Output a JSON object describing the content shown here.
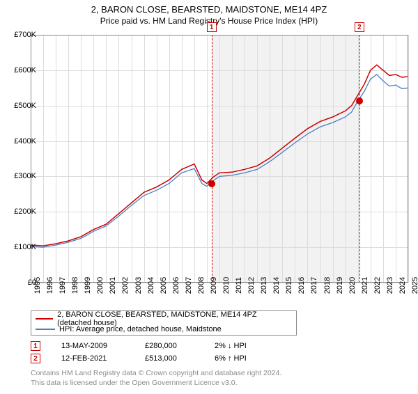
{
  "title": "2, BARON CLOSE, BEARSTED, MAIDSTONE, ME14 4PZ",
  "subtitle": "Price paid vs. HM Land Registry's House Price Index (HPI)",
  "chart": {
    "type": "line",
    "background_color": "#ffffff",
    "shaded_band_color": "#f2f2f2",
    "grid_color": "#dcdcdc",
    "axis_color": "#888888",
    "xlim_years": [
      1995,
      2025
    ],
    "ylim": [
      0,
      700000
    ],
    "ytick_step": 100000,
    "ytick_labels": [
      "£0",
      "£100K",
      "£200K",
      "£300K",
      "£400K",
      "£500K",
      "£600K",
      "£700K"
    ],
    "xtick_years": [
      1995,
      1996,
      1997,
      1998,
      1999,
      2000,
      2001,
      2002,
      2003,
      2004,
      2005,
      2006,
      2007,
      2008,
      2009,
      2010,
      2011,
      2012,
      2013,
      2014,
      2015,
      2016,
      2017,
      2018,
      2019,
      2020,
      2021,
      2022,
      2023,
      2024,
      2025
    ],
    "series": [
      {
        "name": "2, BARON CLOSE, BEARSTED, MAIDSTONE, ME14 4PZ (detached house)",
        "color": "#cc0000",
        "width": 1.5,
        "points": [
          [
            1995,
            106000
          ],
          [
            1996,
            104000
          ],
          [
            1997,
            110000
          ],
          [
            1998,
            118000
          ],
          [
            1999,
            130000
          ],
          [
            2000,
            150000
          ],
          [
            2001,
            165000
          ],
          [
            2002,
            195000
          ],
          [
            2003,
            225000
          ],
          [
            2004,
            255000
          ],
          [
            2005,
            270000
          ],
          [
            2006,
            290000
          ],
          [
            2007,
            320000
          ],
          [
            2008,
            335000
          ],
          [
            2008.6,
            290000
          ],
          [
            2009,
            280000
          ],
          [
            2009.5,
            298000
          ],
          [
            2010,
            310000
          ],
          [
            2011,
            312000
          ],
          [
            2012,
            320000
          ],
          [
            2013,
            330000
          ],
          [
            2014,
            352000
          ],
          [
            2015,
            380000
          ],
          [
            2016,
            408000
          ],
          [
            2017,
            435000
          ],
          [
            2018,
            455000
          ],
          [
            2019,
            468000
          ],
          [
            2020,
            485000
          ],
          [
            2020.5,
            500000
          ],
          [
            2021,
            530000
          ],
          [
            2021.5,
            560000
          ],
          [
            2022,
            600000
          ],
          [
            2022.5,
            615000
          ],
          [
            2023,
            600000
          ],
          [
            2023.5,
            585000
          ],
          [
            2024,
            588000
          ],
          [
            2024.5,
            580000
          ],
          [
            2025,
            582000
          ]
        ]
      },
      {
        "name": "HPI: Average price, detached house, Maidstone",
        "color": "#4a7fc4",
        "width": 1.3,
        "points": [
          [
            1995,
            102000
          ],
          [
            1996,
            100000
          ],
          [
            1997,
            106000
          ],
          [
            1998,
            114000
          ],
          [
            1999,
            125000
          ],
          [
            2000,
            145000
          ],
          [
            2001,
            160000
          ],
          [
            2002,
            188000
          ],
          [
            2003,
            218000
          ],
          [
            2004,
            246000
          ],
          [
            2005,
            261000
          ],
          [
            2006,
            280000
          ],
          [
            2007,
            310000
          ],
          [
            2008,
            322000
          ],
          [
            2008.6,
            280000
          ],
          [
            2009,
            272000
          ],
          [
            2009.5,
            288000
          ],
          [
            2010,
            300000
          ],
          [
            2011,
            303000
          ],
          [
            2012,
            310000
          ],
          [
            2013,
            320000
          ],
          [
            2014,
            342000
          ],
          [
            2015,
            368000
          ],
          [
            2016,
            395000
          ],
          [
            2017,
            420000
          ],
          [
            2018,
            440000
          ],
          [
            2019,
            452000
          ],
          [
            2020,
            468000
          ],
          [
            2020.5,
            482000
          ],
          [
            2021,
            513000
          ],
          [
            2021.5,
            540000
          ],
          [
            2022,
            575000
          ],
          [
            2022.5,
            588000
          ],
          [
            2023,
            570000
          ],
          [
            2023.5,
            555000
          ],
          [
            2024,
            558000
          ],
          [
            2024.5,
            548000
          ],
          [
            2025,
            550000
          ]
        ]
      }
    ],
    "markers": [
      {
        "n": "1",
        "year": 2009.37,
        "value": 280000
      },
      {
        "n": "2",
        "year": 2021.12,
        "value": 513000
      }
    ],
    "shaded_band_years": [
      2009.37,
      2021.12
    ]
  },
  "legend": {
    "series1_label": "2, BARON CLOSE, BEARSTED, MAIDSTONE, ME14 4PZ (detached house)",
    "series2_label": "HPI: Average price, detached house, Maidstone",
    "series1_color": "#cc0000",
    "series2_color": "#4a7fc4"
  },
  "sales": [
    {
      "n": "1",
      "date": "13-MAY-2009",
      "price": "£280,000",
      "delta": "2% ↓ HPI"
    },
    {
      "n": "2",
      "date": "12-FEB-2021",
      "price": "£513,000",
      "delta": "6% ↑ HPI"
    }
  ],
  "footnote_line1": "Contains HM Land Registry data © Crown copyright and database right 2024.",
  "footnote_line2": "This data is licensed under the Open Government Licence v3.0."
}
